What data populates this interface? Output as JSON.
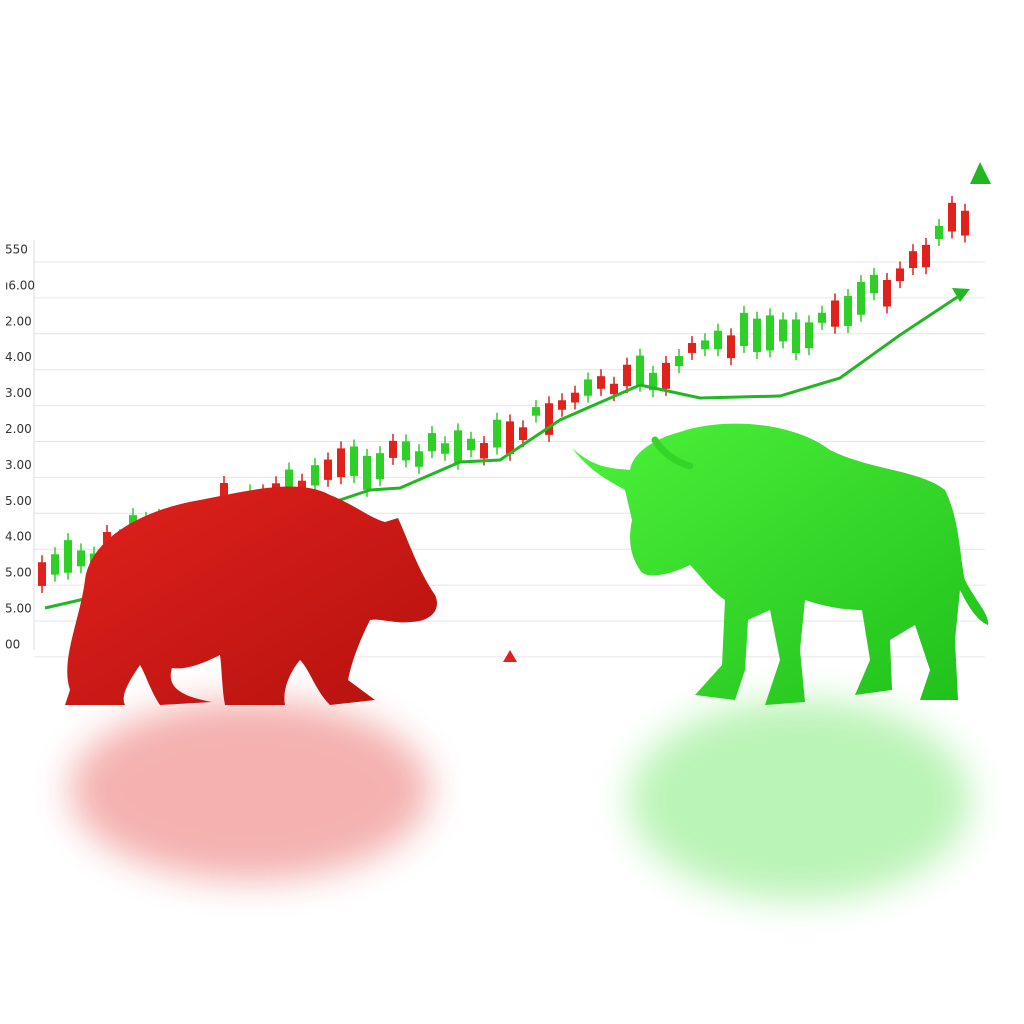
{
  "axis_labels": [
    "550",
    "ı6.00",
    "2.00",
    "4.00",
    "3.00",
    "2.00",
    "3.00",
    "5.00",
    "4.00",
    "5.00",
    "5.00",
    "00"
  ]
}
